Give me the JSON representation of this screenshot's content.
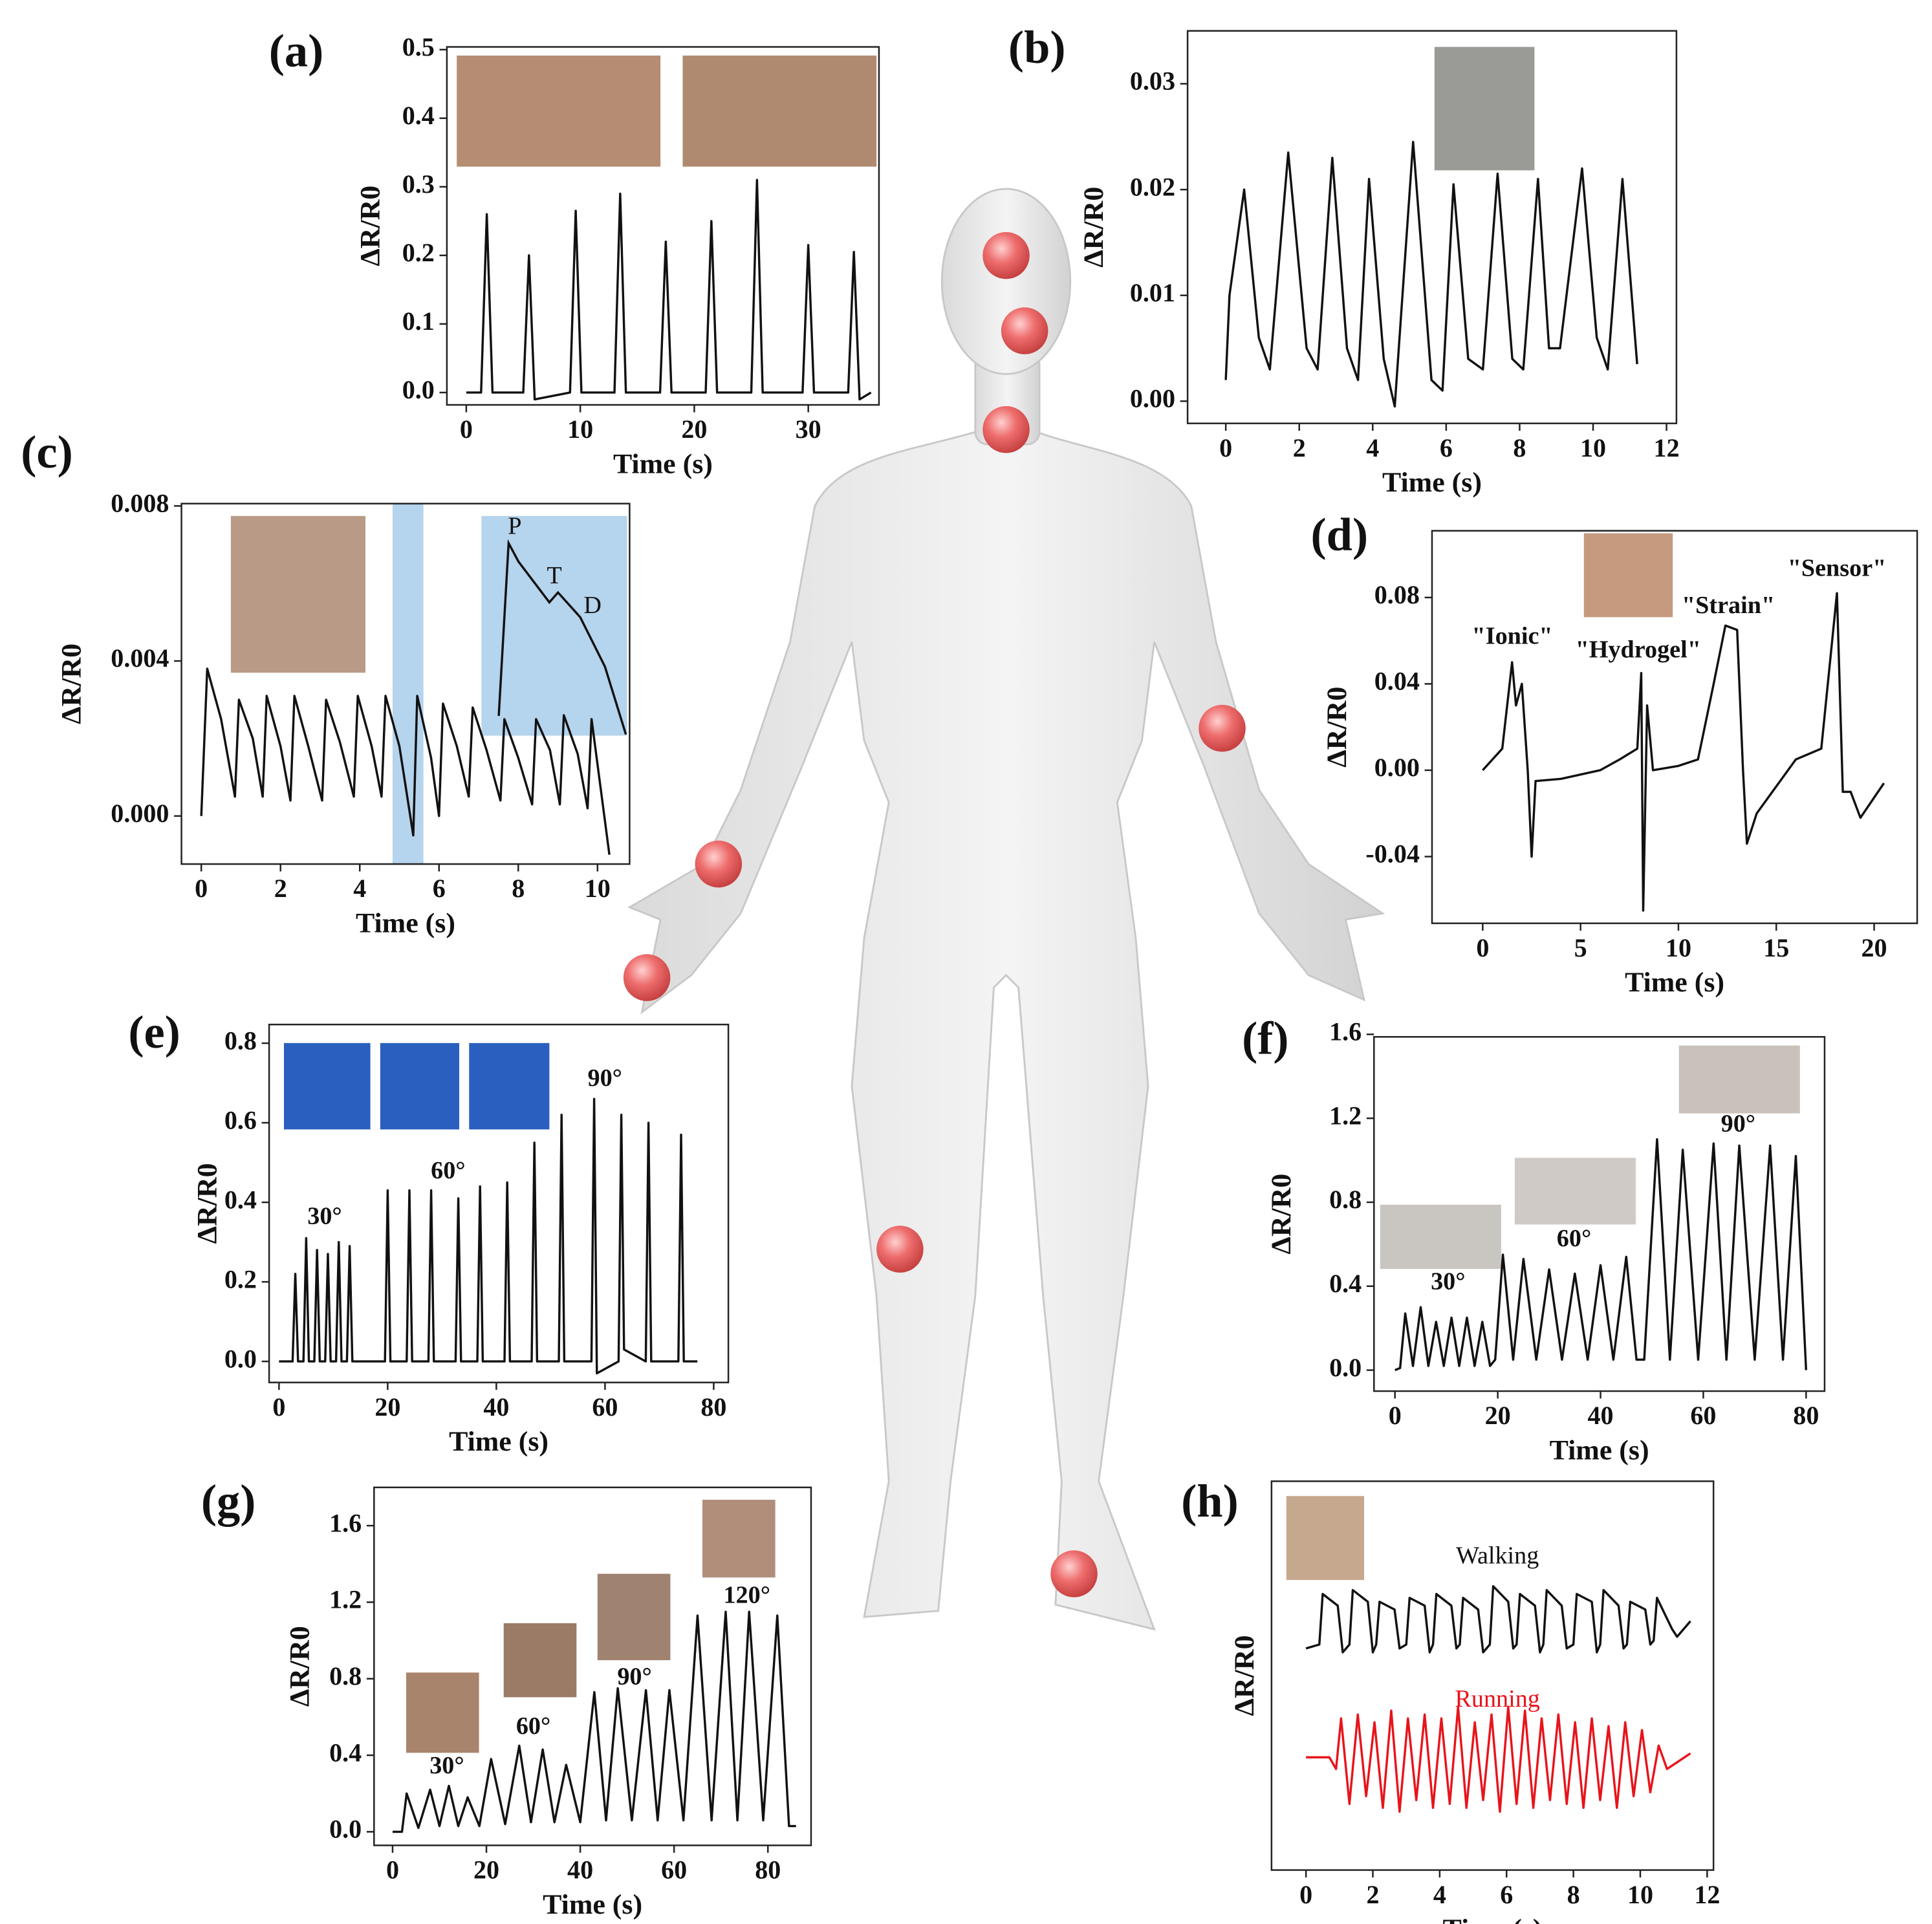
{
  "chart_data": [
    {
      "type": "line",
      "panel": "(a)",
      "xlabel": "Time (s)",
      "ylabel": "ΔR/R0",
      "xlim": [
        -1.7,
        36.2
      ],
      "ylim": [
        -0.018,
        0.504
      ],
      "xticks": [
        0,
        10,
        20,
        30
      ],
      "yticks": [
        {
          "value": 0,
          "label": "0.0"
        },
        0.1,
        0.2,
        0.3,
        0.4,
        0.5
      ],
      "series": [
        {
          "color": "#111111",
          "x": [
            0,
            1.3,
            1.8,
            2.3,
            5.0,
            5.5,
            6.0,
            9.1,
            9.6,
            10.1,
            13.0,
            13.5,
            14.0,
            17.0,
            17.5,
            18.0,
            21.0,
            21.5,
            22.0,
            25.0,
            25.5,
            26.0,
            29.5,
            30.0,
            30.5,
            33.5,
            34.0,
            34.5,
            35.5
          ],
          "values": [
            0,
            0,
            0.26,
            0,
            0,
            0.2,
            -0.01,
            0,
            0.265,
            0,
            0,
            0.29,
            0,
            0,
            0.22,
            0,
            0,
            0.25,
            0,
            0,
            0.31,
            0,
            0,
            0.215,
            0,
            0,
            0.205,
            -0.01,
            0
          ]
        }
      ]
    },
    {
      "type": "line",
      "panel": "(b)",
      "xlabel": "Time (s)",
      "ylabel": "ΔR/R0",
      "xlim": [
        -1.04,
        12.27
      ],
      "ylim": [
        -0.0021,
        0.035
      ],
      "xticks": [
        0,
        2,
        4,
        6,
        8,
        10,
        12
      ],
      "yticks": [
        {
          "value": 0,
          "label": "0.00"
        },
        0.01,
        0.02,
        0.03
      ],
      "series": [
        {
          "color": "#111111",
          "x": [
            0,
            0.1,
            0.5,
            0.9,
            1.2,
            1.7,
            2.2,
            2.5,
            2.9,
            3.3,
            3.6,
            3.9,
            4.3,
            4.6,
            5.1,
            5.6,
            5.9,
            6.2,
            6.6,
            7.0,
            7.4,
            7.8,
            8.1,
            8.5,
            8.8,
            9.1,
            9.7,
            10.1,
            10.4,
            10.8,
            11.2
          ],
          "values": [
            0.002,
            0.01,
            0.02,
            0.006,
            0.003,
            0.0235,
            0.005,
            0.003,
            0.023,
            0.005,
            0.002,
            0.021,
            0.004,
            -0.0005,
            0.0245,
            0.002,
            0.001,
            0.0205,
            0.004,
            0.003,
            0.0215,
            0.004,
            0.003,
            0.021,
            0.005,
            0.005,
            0.022,
            0.006,
            0.003,
            0.021,
            0.0035
          ]
        }
      ]
    },
    {
      "type": "line",
      "panel": "(c)",
      "xlabel": "Time (s)",
      "ylabel": "ΔR/R0",
      "xlim": [
        -0.5,
        10.81
      ],
      "ylim": [
        -0.00124,
        0.00806
      ],
      "xticks": [
        0,
        2,
        4,
        6,
        8,
        10
      ],
      "yticks": [
        {
          "value": 0,
          "label": "0.000"
        },
        0.004,
        0.008
      ],
      "annotations": [
        "P",
        "T",
        "D"
      ],
      "series": [
        {
          "color": "#111111",
          "x": [
            0,
            0.15,
            0.5,
            0.85,
            0.95,
            1.3,
            1.55,
            1.65,
            2.0,
            2.25,
            2.35,
            2.7,
            3.05,
            3.15,
            3.5,
            3.85,
            3.95,
            4.3,
            4.55,
            4.65,
            5.0,
            5.35,
            5.45,
            5.8,
            6.0,
            6.1,
            6.45,
            6.75,
            6.85,
            7.2,
            7.55,
            7.65,
            8.0,
            8.35,
            8.45,
            8.8,
            9.05,
            9.15,
            9.5,
            9.75,
            9.85,
            10.3
          ],
          "values": [
            0,
            0.0038,
            0.0025,
            0.0005,
            0.003,
            0.002,
            0.0005,
            0.0031,
            0.0018,
            0.0004,
            0.0031,
            0.0018,
            0.0004,
            0.003,
            0.0019,
            0.0005,
            0.0031,
            0.0018,
            0.0005,
            0.0031,
            0.0018,
            -0.0005,
            0.0031,
            0.0015,
            0,
            0.0029,
            0.0018,
            0.0005,
            0.0028,
            0.0017,
            0.0004,
            0.0025,
            0.0015,
            0.0003,
            0.0025,
            0.0017,
            0.0003,
            0.0026,
            0.0016,
            0.0002,
            0.0025,
            -0.001
          ]
        }
      ]
    },
    {
      "type": "line",
      "panel": "(d)",
      "xlabel": "Time (s)",
      "ylabel": "ΔR/R0",
      "xlim": [
        -2.59,
        22.2
      ],
      "ylim": [
        -0.0709,
        0.1109
      ],
      "xticks": [
        0,
        5,
        10,
        15,
        20
      ],
      "yticks": [
        -0.04,
        {
          "value": 0,
          "label": "0.00"
        },
        0.04,
        0.08
      ],
      "annotations": [
        "\"Ionic\"",
        "\"Hydrogel\"",
        "\"Strain\"",
        "\"Sensor\""
      ],
      "series": [
        {
          "color": "#111111",
          "x": [
            0,
            1.0,
            1.5,
            1.7,
            2.0,
            2.3,
            2.5,
            2.7,
            4,
            6,
            7,
            7.9,
            8.1,
            8.2,
            8.4,
            8.7,
            10,
            11,
            11.8,
            12.4,
            13.0,
            13.3,
            13.5,
            14,
            16,
            17.3,
            18.1,
            18.4,
            18.8,
            19.3,
            20.5
          ],
          "values": [
            0,
            0.01,
            0.05,
            0.03,
            0.04,
            0,
            -0.04,
            -0.005,
            -0.004,
            0,
            0.005,
            0.01,
            0.045,
            -0.065,
            0.03,
            0,
            0.002,
            0.005,
            0.04,
            0.067,
            0.065,
            0,
            -0.034,
            -0.02,
            0.005,
            0.01,
            0.082,
            -0.01,
            -0.01,
            -0.022,
            -0.006
          ]
        }
      ]
    },
    {
      "type": "line",
      "panel": "(e)",
      "xlabel": "Time (s)",
      "ylabel": "ΔR/R0",
      "xlim": [
        -1.82,
        82.7
      ],
      "ylim": [
        -0.053,
        0.847
      ],
      "xticks": [
        0,
        20,
        40,
        60,
        80
      ],
      "yticks": [
        {
          "value": 0,
          "label": "0.0"
        },
        0.2,
        0.4,
        0.6,
        0.8
      ],
      "annotations": [
        "30°",
        "60°",
        "90°"
      ],
      "series": [
        {
          "color": "#111111",
          "x": [
            0,
            2.5,
            3,
            3.5,
            4.5,
            5,
            5.5,
            6.5,
            7,
            7.5,
            8.5,
            9,
            9.5,
            10.5,
            11,
            11.5,
            12.5,
            13,
            13.5,
            19.5,
            20,
            20.5,
            23.5,
            24,
            24.5,
            27.5,
            28,
            28.5,
            32.5,
            33,
            33.5,
            36.5,
            37,
            37.5,
            41.5,
            42,
            42.5,
            46.5,
            47,
            47.5,
            51.5,
            52,
            52.5,
            57.5,
            58,
            58.5,
            62.5,
            63,
            63.5,
            67.5,
            68,
            68.5,
            73.5,
            74,
            74.5,
            77
          ],
          "values": [
            0,
            0,
            0.22,
            0,
            0,
            0.31,
            0,
            0,
            0.28,
            0,
            0,
            0.27,
            0,
            0,
            0.3,
            0,
            0,
            0.29,
            0,
            0,
            0.43,
            0,
            0,
            0.43,
            0,
            0,
            0.43,
            0,
            0,
            0.41,
            0,
            0,
            0.44,
            0,
            0,
            0.45,
            0,
            0,
            0.55,
            0,
            0,
            0.62,
            0,
            0,
            0.66,
            -0.03,
            0,
            0.62,
            0.03,
            0,
            0.6,
            0,
            0,
            0.57,
            0,
            0
          ]
        }
      ]
    },
    {
      "type": "line",
      "panel": "(f)",
      "xlabel": "Time (s)",
      "ylabel": "ΔR/R0",
      "xlim": [
        -4.08,
        83.6
      ],
      "ylim": [
        -0.1,
        1.588
      ],
      "xticks": [
        0,
        20,
        40,
        60,
        80
      ],
      "yticks": [
        {
          "value": 0,
          "label": "0.0"
        },
        0.4,
        0.8,
        1.2,
        1.6
      ],
      "annotations": [
        "30°",
        "60°",
        "90°"
      ],
      "series": [
        {
          "color": "#111111",
          "x": [
            0,
            1,
            2,
            3.5,
            5,
            6.5,
            8,
            9.5,
            11,
            12.5,
            14,
            15.5,
            17,
            18.5,
            19.5,
            21,
            23,
            25,
            27.5,
            30,
            32.5,
            35,
            37.5,
            40,
            42.5,
            45,
            47,
            48.5,
            51,
            53.5,
            56,
            59,
            62,
            64.5,
            67,
            70,
            73,
            75.5,
            78,
            80
          ],
          "values": [
            0,
            0.01,
            0.27,
            0.02,
            0.3,
            0.02,
            0.23,
            0.02,
            0.25,
            0.02,
            0.25,
            0.02,
            0.23,
            0.02,
            0.05,
            0.55,
            0.05,
            0.53,
            0.05,
            0.48,
            0.05,
            0.46,
            0.05,
            0.5,
            0.05,
            0.54,
            0.05,
            0.05,
            1.1,
            0.05,
            1.05,
            0.05,
            1.08,
            0.05,
            1.07,
            0.05,
            1.07,
            0.05,
            1.02,
            0
          ]
        }
      ]
    },
    {
      "type": "line",
      "panel": "(g)",
      "xlabel": "Time (s)",
      "ylabel": "ΔR/R0",
      "xlim": [
        -3.95,
        89.2
      ],
      "ylim": [
        -0.071,
        1.8
      ],
      "xticks": [
        0,
        20,
        40,
        60,
        80
      ],
      "yticks": [
        {
          "value": 0,
          "label": "0.0"
        },
        0.4,
        0.8,
        1.2,
        1.6
      ],
      "annotations": [
        "30°",
        "60°",
        "90°",
        "120°"
      ],
      "series": [
        {
          "color": "#111111",
          "x": [
            0,
            2,
            3,
            5.5,
            8,
            10,
            12,
            14,
            16,
            18.5,
            21,
            24,
            27,
            29.5,
            32,
            34.5,
            37,
            40,
            43,
            45.5,
            48,
            51,
            54,
            56.5,
            59,
            62,
            65,
            68,
            71,
            73.5,
            76,
            79,
            82,
            84.5,
            86
          ],
          "values": [
            0,
            0,
            0.2,
            0.02,
            0.22,
            0.03,
            0.24,
            0.03,
            0.18,
            0.03,
            0.38,
            0.04,
            0.45,
            0.05,
            0.43,
            0.05,
            0.35,
            0.05,
            0.73,
            0.06,
            0.75,
            0.06,
            0.74,
            0.06,
            0.74,
            0.06,
            1.13,
            0.06,
            1.15,
            0.06,
            1.15,
            0.06,
            1.13,
            0.03,
            0.03
          ]
        }
      ]
    },
    {
      "type": "line",
      "panel": "(h)",
      "xlabel": "Time (s)",
      "ylabel": "ΔR/R0",
      "xlim": [
        -1.03,
        12.19
      ],
      "ylim": [
        0,
        10
      ],
      "xticks": [
        0,
        2,
        4,
        6,
        8,
        10,
        12
      ],
      "series": [
        {
          "name": "Walking",
          "color": "#111111",
          "x": [
            0,
            0.4,
            0.5,
            0.95,
            1.1,
            1.3,
            1.4,
            1.85,
            2.0,
            2.1,
            2.2,
            2.65,
            2.8,
            3.0,
            3.1,
            3.55,
            3.7,
            3.8,
            3.9,
            4.35,
            4.5,
            4.6,
            4.7,
            5.15,
            5.3,
            5.5,
            5.6,
            6.05,
            6.2,
            6.3,
            6.4,
            6.85,
            7.0,
            7.1,
            7.2,
            7.65,
            7.8,
            8.0,
            8.1,
            8.55,
            8.7,
            8.8,
            8.9,
            9.35,
            9.5,
            9.6,
            9.7,
            10.15,
            10.3,
            10.4,
            10.5,
            10.95,
            11.1,
            11.5
          ],
          "values": [
            5.7,
            5.8,
            7.1,
            6.8,
            5.6,
            5.8,
            7.2,
            6.9,
            5.6,
            5.8,
            6.9,
            6.7,
            5.7,
            5.8,
            7.0,
            6.8,
            5.6,
            5.8,
            7.1,
            6.8,
            5.7,
            5.8,
            7.0,
            6.7,
            5.6,
            5.8,
            7.3,
            6.9,
            5.7,
            5.8,
            7.1,
            6.8,
            5.6,
            5.8,
            7.2,
            6.8,
            5.7,
            5.8,
            7.1,
            6.9,
            5.6,
            5.8,
            7.2,
            6.8,
            5.7,
            5.8,
            6.9,
            6.7,
            5.8,
            5.9,
            7.0,
            6.2,
            6.0,
            6.4
          ]
        },
        {
          "name": "Running",
          "color": "#e8141b",
          "x": [
            0,
            0.7,
            0.9,
            1.05,
            1.3,
            1.55,
            1.8,
            2.05,
            2.3,
            2.55,
            2.8,
            3.05,
            3.3,
            3.55,
            3.8,
            4.05,
            4.3,
            4.55,
            4.8,
            5.05,
            5.3,
            5.55,
            5.8,
            6.05,
            6.3,
            6.55,
            6.8,
            7.05,
            7.3,
            7.55,
            7.8,
            8.05,
            8.3,
            8.55,
            8.8,
            9.05,
            9.3,
            9.55,
            9.8,
            10.05,
            10.3,
            10.55,
            10.8,
            11.5
          ],
          "values": [
            2.9,
            2.9,
            2.6,
            3.9,
            1.7,
            4.0,
            1.9,
            3.8,
            1.6,
            4.1,
            1.5,
            3.9,
            1.8,
            4.0,
            1.6,
            3.9,
            1.7,
            4.2,
            1.6,
            3.8,
            1.8,
            4.0,
            1.5,
            4.2,
            1.7,
            4.1,
            1.6,
            3.9,
            1.8,
            4.0,
            1.7,
            3.8,
            1.6,
            3.9,
            1.8,
            3.7,
            1.6,
            3.8,
            1.9,
            3.6,
            2.0,
            3.2,
            2.6,
            3.0
          ]
        }
      ]
    }
  ]
}
